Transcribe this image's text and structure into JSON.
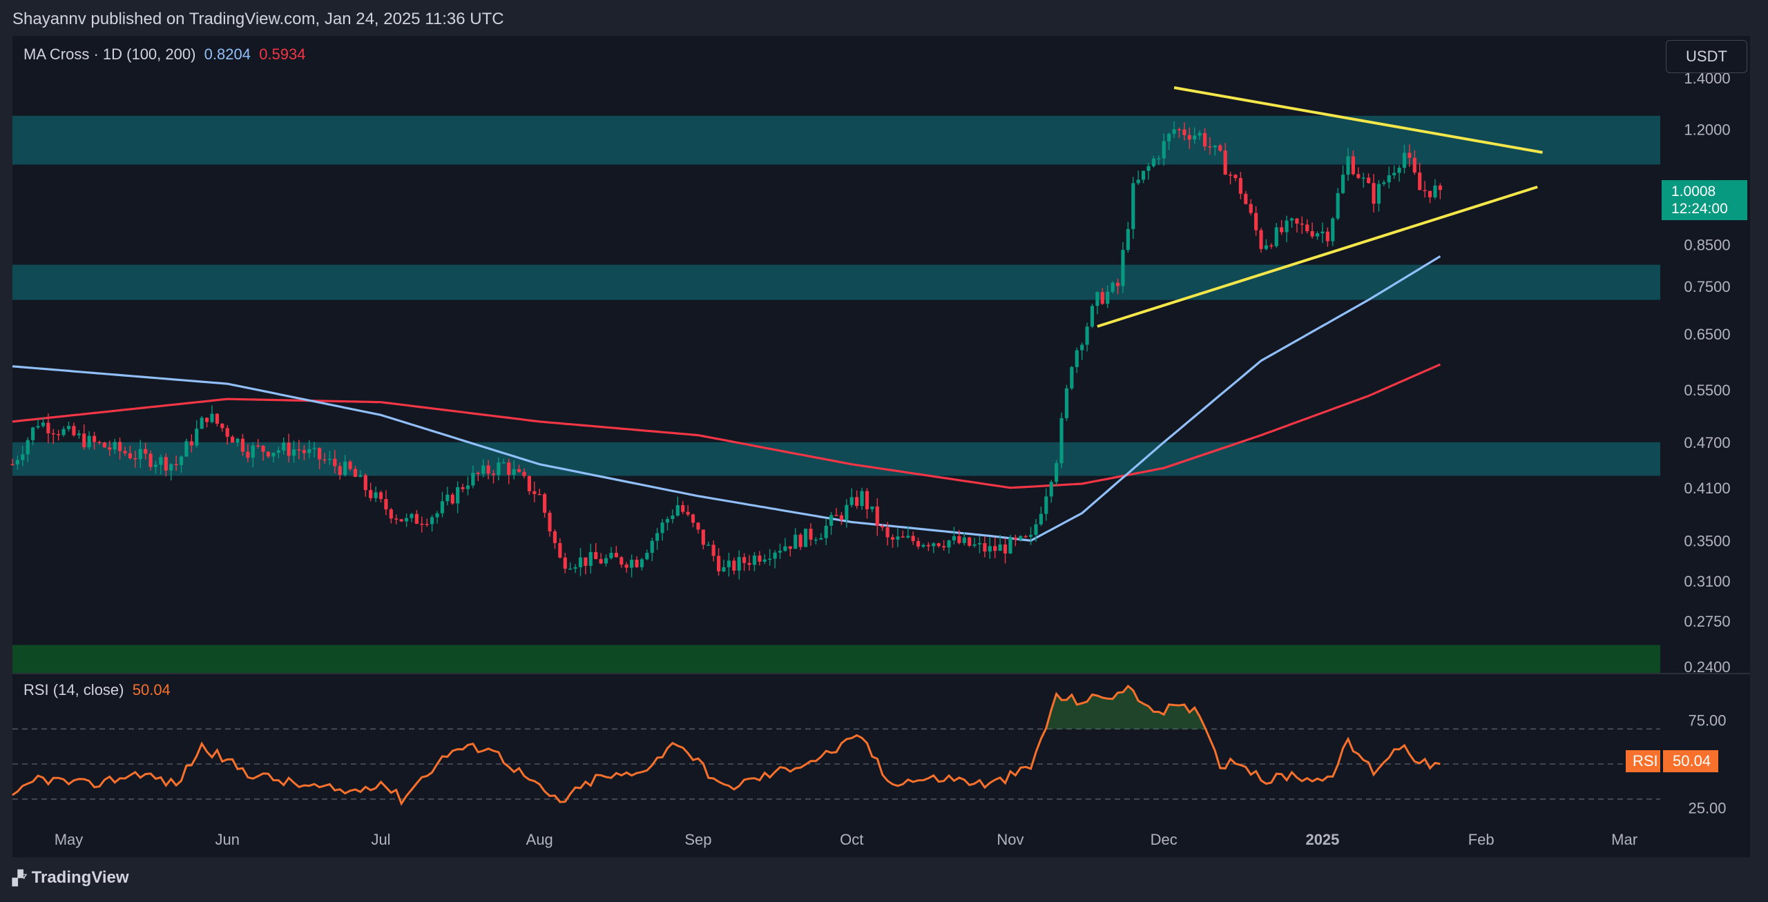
{
  "header": {
    "published": "Shayannv published on TradingView.com, Jan 24, 2025 11:36 UTC"
  },
  "indicator": {
    "name": "MA Cross · 1D (100, 200)",
    "ma100_value": "0.8204",
    "ma200_value": "0.5934"
  },
  "rsi_legend": {
    "name": "RSI (14, close)",
    "value": "50.04"
  },
  "toolbar": {
    "currency": "USDT"
  },
  "price_tag": {
    "price": "1.0008",
    "countdown": "12:24:00"
  },
  "rsi_tag": {
    "label": "RSI",
    "value": "50.04"
  },
  "footer": {
    "brand": "TradingView"
  },
  "colors": {
    "background": "#131722",
    "candle_up": "#089981",
    "candle_down": "#f23645",
    "ma100": "#90bff9",
    "ma200": "#f23645",
    "trendline": "#f5e64a",
    "zone_teal": "#0f4a55",
    "zone_green": "#0d4a24",
    "rsi_line": "#f7712d"
  },
  "chart_data": [
    {
      "type": "candlestick",
      "scale": "log",
      "ylim": [
        0.235,
        1.45
      ],
      "price_ticks": [
        "1.4000",
        "1.2000",
        "1.0008",
        "0.8500",
        "0.7500",
        "0.6500",
        "0.5500",
        "0.4700",
        "0.4100",
        "0.3500",
        "0.3100",
        "0.2750",
        "0.2400"
      ],
      "x_labels": [
        "May",
        "Jun",
        "Jul",
        "Aug",
        "Sep",
        "Oct",
        "Nov",
        "Dec",
        "2025",
        "Feb",
        "Mar"
      ],
      "x_label_dates": [
        "2024-05-01",
        "2024-06-01",
        "2024-07-01",
        "2024-08-01",
        "2024-09-01",
        "2024-10-01",
        "2024-11-01",
        "2024-12-01",
        "2025-01-01",
        "2025-02-01",
        "2025-03-01"
      ],
      "date_range": [
        "2024-04-20",
        "2025-03-08"
      ],
      "last_price": 1.0008,
      "close_keypoints": [
        [
          "2024-04-20",
          0.44
        ],
        [
          "2024-04-25",
          0.5
        ],
        [
          "2024-05-05",
          0.47
        ],
        [
          "2024-05-15",
          0.45
        ],
        [
          "2024-05-22",
          0.44
        ],
        [
          "2024-05-28",
          0.51
        ],
        [
          "2024-06-05",
          0.46
        ],
        [
          "2024-06-15",
          0.46
        ],
        [
          "2024-06-25",
          0.43
        ],
        [
          "2024-07-01",
          0.39
        ],
        [
          "2024-07-06",
          0.37
        ],
        [
          "2024-07-12",
          0.38
        ],
        [
          "2024-07-18",
          0.42
        ],
        [
          "2024-07-25",
          0.44
        ],
        [
          "2024-08-01",
          0.4
        ],
        [
          "2024-08-05",
          0.33
        ],
        [
          "2024-08-12",
          0.33
        ],
        [
          "2024-08-20",
          0.33
        ],
        [
          "2024-08-28",
          0.39
        ],
        [
          "2024-09-06",
          0.32
        ],
        [
          "2024-09-15",
          0.34
        ],
        [
          "2024-09-25",
          0.36
        ],
        [
          "2024-10-03",
          0.4
        ],
        [
          "2024-10-08",
          0.35
        ],
        [
          "2024-10-20",
          0.35
        ],
        [
          "2024-10-28",
          0.34
        ],
        [
          "2024-11-05",
          0.35
        ],
        [
          "2024-11-10",
          0.45
        ],
        [
          "2024-11-13",
          0.6
        ],
        [
          "2024-11-18",
          0.72
        ],
        [
          "2024-11-22",
          0.75
        ],
        [
          "2024-11-25",
          1.0
        ],
        [
          "2024-12-03",
          1.2
        ],
        [
          "2024-12-08",
          1.18
        ],
        [
          "2024-12-12",
          1.1
        ],
        [
          "2024-12-16",
          1.0
        ],
        [
          "2024-12-20",
          0.85
        ],
        [
          "2024-12-26",
          0.9
        ],
        [
          "2025-01-02",
          0.88
        ],
        [
          "2025-01-06",
          1.1
        ],
        [
          "2025-01-11",
          0.98
        ],
        [
          "2025-01-14",
          1.05
        ],
        [
          "2025-01-17",
          1.12
        ],
        [
          "2025-01-20",
          1.0
        ],
        [
          "2025-01-24",
          1.0008
        ]
      ],
      "series": [
        {
          "name": "MA 100",
          "x": [
            "2024-04-20",
            "2024-06-01",
            "2024-07-01",
            "2024-08-01",
            "2024-09-01",
            "2024-10-01",
            "2024-10-28",
            "2024-11-05",
            "2024-11-15",
            "2024-12-01",
            "2024-12-20",
            "2025-01-10",
            "2025-01-24"
          ],
          "y": [
            0.59,
            0.56,
            0.51,
            0.44,
            0.4,
            0.37,
            0.355,
            0.35,
            0.38,
            0.47,
            0.6,
            0.72,
            0.8204
          ]
        },
        {
          "name": "MA 200",
          "x": [
            "2024-04-20",
            "2024-06-01",
            "2024-07-01",
            "2024-08-01",
            "2024-09-01",
            "2024-10-01",
            "2024-11-01",
            "2024-11-15",
            "2024-12-01",
            "2024-12-20",
            "2025-01-10",
            "2025-01-24"
          ],
          "y": [
            0.5,
            0.535,
            0.53,
            0.5,
            0.48,
            0.44,
            0.41,
            0.415,
            0.435,
            0.48,
            0.54,
            0.5934
          ]
        }
      ],
      "zones": [
        {
          "low": 1.08,
          "high": 1.25,
          "color": "teal"
        },
        {
          "low": 0.72,
          "high": 0.8,
          "color": "teal"
        },
        {
          "low": 0.425,
          "high": 0.47,
          "color": "teal"
        },
        {
          "low": 0.235,
          "high": 0.256,
          "color": "green"
        }
      ],
      "trendlines": [
        {
          "name": "upper",
          "from": [
            "2024-12-03",
            1.36
          ],
          "to": [
            "2025-02-13",
            1.12
          ]
        },
        {
          "name": "lower",
          "from": [
            "2024-11-18",
            0.665
          ],
          "to": [
            "2025-02-12",
            1.01
          ]
        }
      ]
    },
    {
      "type": "line",
      "title": "RSI (14, close)",
      "ylim": [
        15,
        100
      ],
      "yticks": [
        "75.00",
        "25.00"
      ],
      "levels": [
        70,
        50,
        30
      ],
      "overbought": 70,
      "last_value": 50.04,
      "keypoints": [
        [
          "2024-04-20",
          30
        ],
        [
          "2024-04-25",
          42
        ],
        [
          "2024-05-05",
          38
        ],
        [
          "2024-05-15",
          45
        ],
        [
          "2024-05-22",
          38
        ],
        [
          "2024-05-27",
          60
        ],
        [
          "2024-06-05",
          45
        ],
        [
          "2024-06-15",
          38
        ],
        [
          "2024-06-25",
          34
        ],
        [
          "2024-07-01",
          40
        ],
        [
          "2024-07-05",
          30
        ],
        [
          "2024-07-10",
          45
        ],
        [
          "2024-07-15",
          58
        ],
        [
          "2024-07-22",
          60
        ],
        [
          "2024-08-01",
          36
        ],
        [
          "2024-08-05",
          28
        ],
        [
          "2024-08-12",
          42
        ],
        [
          "2024-08-20",
          44
        ],
        [
          "2024-08-28",
          63
        ],
        [
          "2024-09-06",
          36
        ],
        [
          "2024-09-15",
          44
        ],
        [
          "2024-09-25",
          54
        ],
        [
          "2024-10-03",
          66
        ],
        [
          "2024-10-08",
          40
        ],
        [
          "2024-10-20",
          42
        ],
        [
          "2024-10-28",
          38
        ],
        [
          "2024-11-05",
          48
        ],
        [
          "2024-11-10",
          88
        ],
        [
          "2024-11-15",
          86
        ],
        [
          "2024-11-22",
          90
        ],
        [
          "2024-11-25",
          93
        ],
        [
          "2024-11-28",
          80
        ],
        [
          "2024-12-03",
          82
        ],
        [
          "2024-12-08",
          80
        ],
        [
          "2024-12-12",
          50
        ],
        [
          "2024-12-16",
          52
        ],
        [
          "2024-12-20",
          40
        ],
        [
          "2024-12-26",
          44
        ],
        [
          "2025-01-02",
          40
        ],
        [
          "2025-01-06",
          62
        ],
        [
          "2025-01-11",
          46
        ],
        [
          "2025-01-14",
          55
        ],
        [
          "2025-01-17",
          62
        ],
        [
          "2025-01-20",
          50
        ],
        [
          "2025-01-24",
          50.04
        ]
      ]
    }
  ]
}
